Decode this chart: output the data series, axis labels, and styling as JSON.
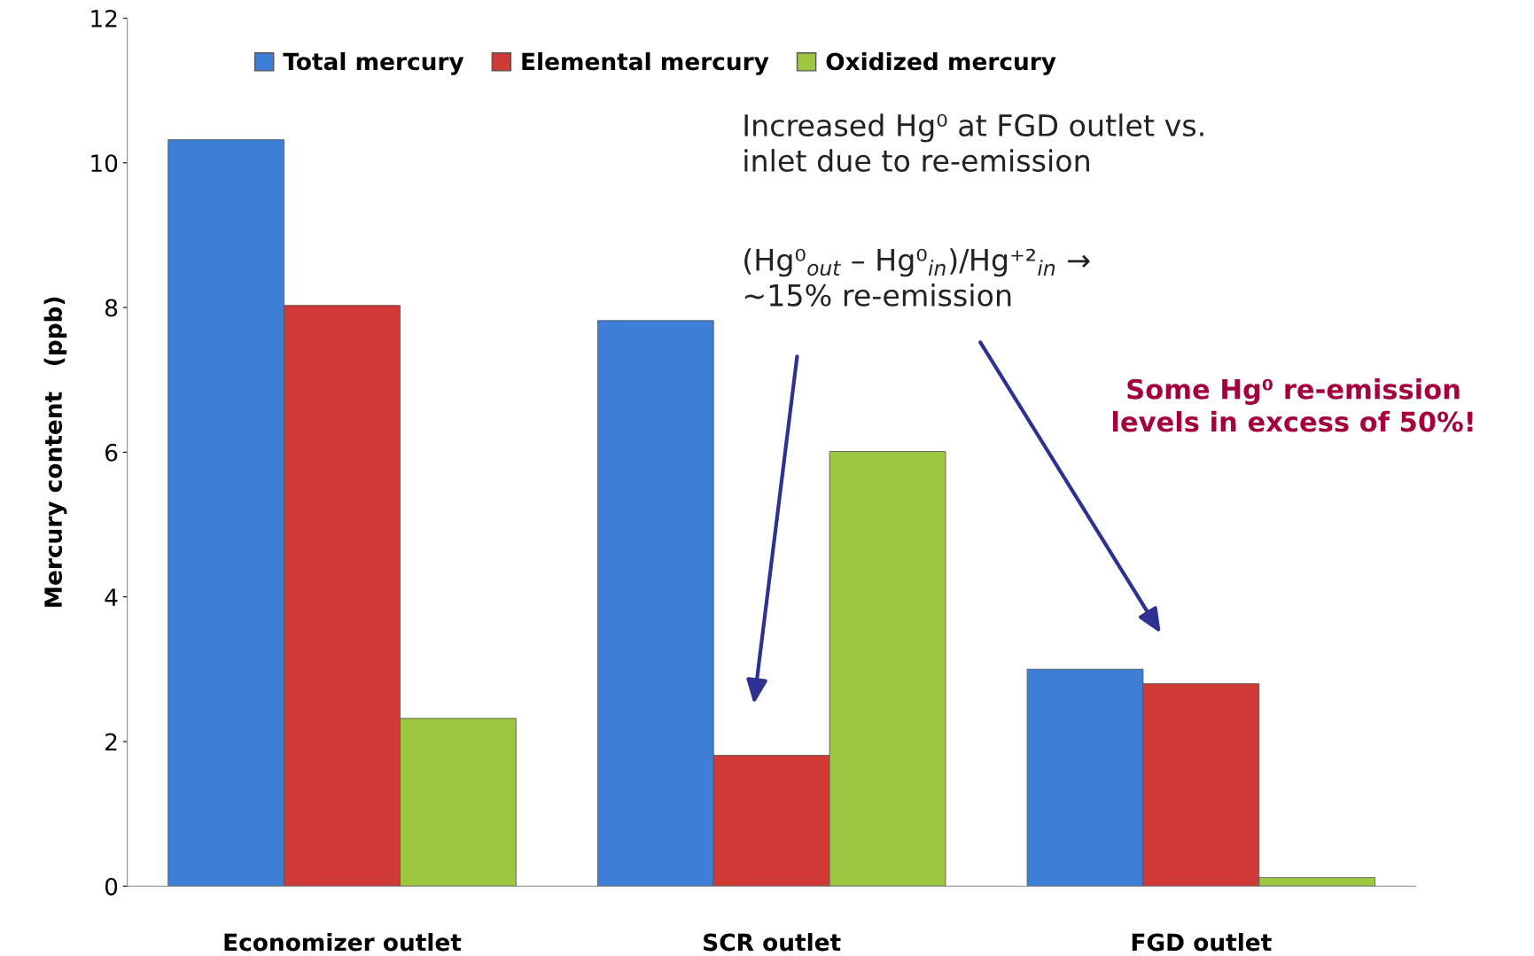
{
  "chart_data": {
    "type": "bar",
    "ylabel": "Mercury content   (ppb)",
    "categories": [
      "Economizer outlet",
      "SCR outlet",
      "FGD outlet"
    ],
    "series": [
      {
        "name": "Total mercury",
        "color": "#3d7fd6",
        "values": [
          10.32,
          7.82,
          3.0
        ]
      },
      {
        "name": "Elemental mercury",
        "color": "#d03a36",
        "values": [
          8.03,
          1.81,
          2.8
        ]
      },
      {
        "name": "Oxidized mercury",
        "color": "#9cc73e",
        "values": [
          2.32,
          6.01,
          0.12
        ]
      }
    ],
    "ylim": [
      0,
      12
    ],
    "yticks": [
      0,
      2,
      4,
      6,
      8,
      10,
      12
    ],
    "grid": false,
    "legend": "top",
    "annotations": [
      "Increased Hg⁰ at FGD outlet vs.\ninlet due to re-emission",
      "(Hg⁰$_{out}$ – Hg⁰$_{in}$)/Hg⁺²$_{in}$ →\n~15% re-emission",
      "Some Hg⁰ re-emission\nlevels in excess of 50%!"
    ]
  }
}
